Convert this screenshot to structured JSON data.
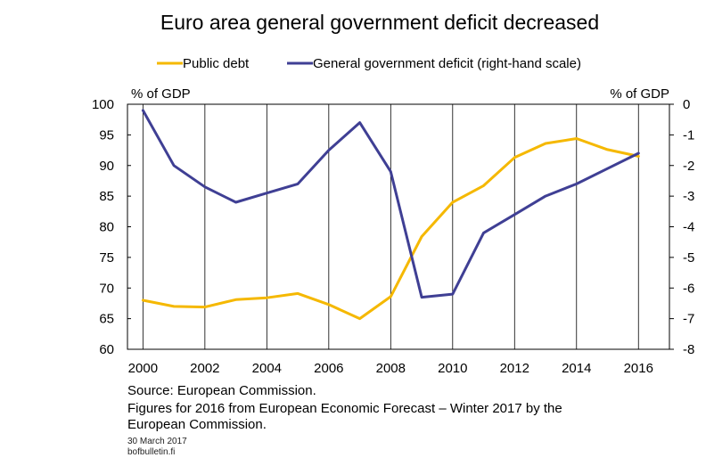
{
  "chart_data": {
    "type": "line",
    "title": "Euro area general government deficit decreased",
    "left_axis_label": "% of GDP",
    "right_axis_label": "% of GDP",
    "x": [
      2000,
      2001,
      2002,
      2003,
      2004,
      2005,
      2006,
      2007,
      2008,
      2009,
      2010,
      2011,
      2012,
      2013,
      2014,
      2015,
      2016
    ],
    "x_ticks": [
      "2000",
      "2002",
      "2004",
      "2006",
      "2008",
      "2010",
      "2012",
      "2014",
      "2016"
    ],
    "xlim": [
      1999.5,
      2017
    ],
    "left_ylim": [
      60,
      100
    ],
    "left_ticks": [
      "100",
      "95",
      "90",
      "85",
      "80",
      "75",
      "70",
      "65",
      "60"
    ],
    "right_ylim": [
      -8,
      0
    ],
    "right_ticks": [
      "0",
      "-1",
      "-2",
      "-3",
      "-4",
      "-5",
      "-6",
      "-7",
      "-8"
    ],
    "grid": "vertical",
    "legend_position": "top",
    "series": [
      {
        "name": "Public debt",
        "axis": "left",
        "color": "#f5b800",
        "values": [
          68.0,
          67.0,
          66.9,
          68.1,
          68.4,
          69.1,
          67.3,
          65.0,
          68.6,
          78.4,
          84.0,
          86.7,
          91.3,
          93.6,
          94.4,
          92.6,
          91.5
        ]
      },
      {
        "name": "General government deficit (right-hand scale)",
        "axis": "right",
        "color": "#3f3f94",
        "values": [
          -0.2,
          -2.0,
          -2.7,
          -3.2,
          -2.9,
          -2.6,
          -1.5,
          -0.6,
          -2.2,
          -6.3,
          -6.2,
          -4.2,
          -3.6,
          -3.0,
          -2.6,
          -2.1,
          -1.6
        ]
      }
    ]
  },
  "notes": {
    "source": "Source: European Commission.",
    "figures_line1": "Figures for 2016 from European Economic Forecast – Winter 2017 by the",
    "figures_line2": "European Commission.",
    "date": "30 March 2017",
    "site": "bofbulletin.fi"
  }
}
